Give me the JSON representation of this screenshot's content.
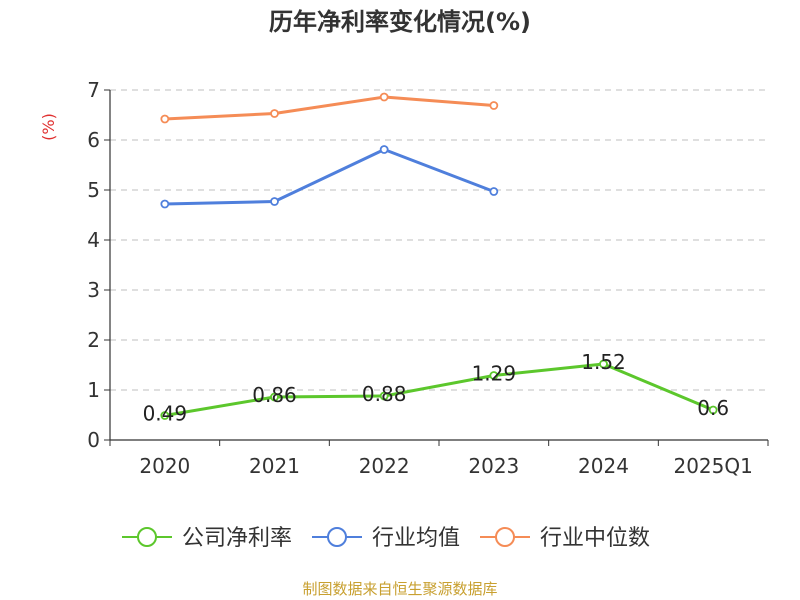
{
  "colors": {
    "series": [
      "#5cc72c",
      "#4f7fdc",
      "#f58c56"
    ],
    "ylabel": "#e03030",
    "footer": "#c8a030",
    "axis": "#333333",
    "grid": "#cccccc",
    "title": "#333333"
  },
  "chart_data": {
    "type": "line",
    "title": "历年净利率变化情况(%)",
    "ylabel": "(%)",
    "xlabel": "",
    "categories": [
      "2020",
      "2021",
      "2022",
      "2023",
      "2024",
      "2025Q1"
    ],
    "ylim": [
      0,
      7
    ],
    "yticks": [
      0,
      1,
      2,
      3,
      4,
      5,
      6,
      7
    ],
    "grid": true,
    "legend_position": "bottom",
    "series": [
      {
        "name": "公司净利率",
        "values": [
          0.49,
          0.86,
          0.88,
          1.29,
          1.52,
          0.6
        ],
        "labels": [
          "0.49",
          "0.86",
          "0.88",
          "1.29",
          "1.52",
          "0.6"
        ]
      },
      {
        "name": "行业均值",
        "values": [
          4.72,
          4.77,
          5.81,
          4.97,
          null,
          null
        ]
      },
      {
        "name": "行业中位数",
        "values": [
          6.42,
          6.53,
          6.86,
          6.69,
          null,
          null
        ]
      }
    ]
  },
  "footer": "制图数据来自恒生聚源数据库"
}
